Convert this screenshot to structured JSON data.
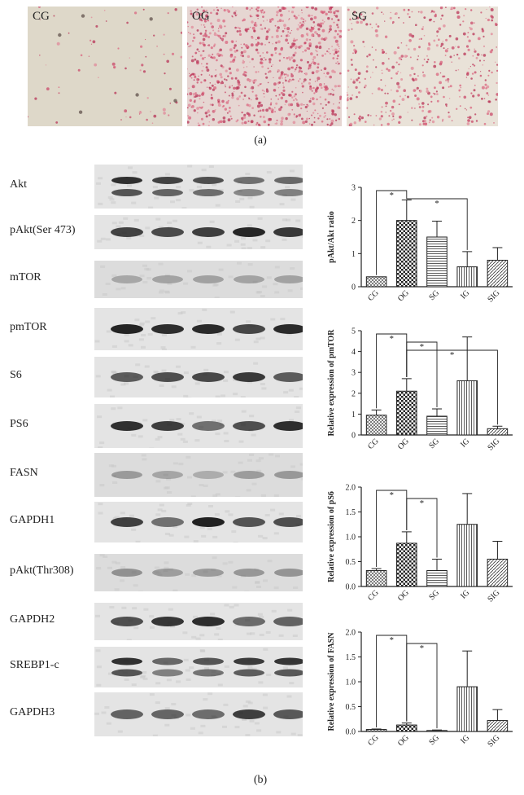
{
  "panel_a": {
    "images": [
      {
        "label": "CG",
        "stain": "sparse",
        "tint": "#ded8c9"
      },
      {
        "label": "OG",
        "stain": "dense",
        "tint": "#e6d6d2"
      },
      {
        "label": "SG",
        "stain": "moderate",
        "tint": "#e9e2d8"
      }
    ],
    "caption": "(a)"
  },
  "panel_b": {
    "caption": "(b)",
    "blots": [
      {
        "label": "Akt",
        "bands": "double"
      },
      {
        "label": "pAkt(Ser 473)",
        "bands": "single"
      },
      {
        "label": "mTOR",
        "bands": "faint"
      },
      {
        "label": "pmTOR",
        "bands": "single"
      },
      {
        "label": "S6",
        "bands": "single"
      },
      {
        "label": "PS6",
        "bands": "single"
      },
      {
        "label": "FASN",
        "bands": "faint"
      },
      {
        "label": "GAPDH1",
        "bands": "single"
      },
      {
        "label": "pAkt(Thr308)",
        "bands": "faint"
      },
      {
        "label": "GAPDH2",
        "bands": "single"
      },
      {
        "label": "SREBP1-c",
        "bands": "double"
      },
      {
        "label": "GAPDH3",
        "bands": "single"
      }
    ]
  },
  "chart_data": [
    {
      "type": "bar",
      "categories": [
        "CG",
        "OG",
        "SG",
        "IG",
        "SIG"
      ],
      "values": [
        0.3,
        2.0,
        1.5,
        0.6,
        0.8
      ],
      "errors": [
        0.0,
        0.62,
        0.48,
        0.46,
        0.38
      ],
      "ylabel": "pAkt/Akt ratio",
      "ylim": [
        0,
        3
      ],
      "yticks": [
        "0",
        "1",
        "2",
        "3"
      ],
      "significance": [
        {
          "from": "CG",
          "to": "OG",
          "label": "*"
        },
        {
          "from": "OG",
          "to": "IG",
          "label": "*"
        }
      ]
    },
    {
      "type": "bar",
      "categories": [
        "CG",
        "OG",
        "SG",
        "IG",
        "SIG"
      ],
      "values": [
        0.95,
        2.1,
        0.9,
        2.6,
        0.3
      ],
      "errors": [
        0.25,
        0.6,
        0.35,
        2.1,
        0.12
      ],
      "ylabel": "Relative expression of pmTOR",
      "ylim": [
        0,
        5
      ],
      "yticks": [
        "0",
        "1",
        "2",
        "3",
        "4",
        "5"
      ],
      "significance": [
        {
          "from": "CG",
          "to": "OG",
          "label": "*"
        },
        {
          "from": "OG",
          "to": "SG",
          "label": "*"
        },
        {
          "from": "OG",
          "to": "SIG",
          "label": "*"
        }
      ]
    },
    {
      "type": "bar",
      "categories": [
        "CG",
        "OG",
        "SG",
        "IG",
        "SIG"
      ],
      "values": [
        0.32,
        0.87,
        0.32,
        1.25,
        0.55
      ],
      "errors": [
        0.04,
        0.23,
        0.23,
        0.62,
        0.36
      ],
      "ylabel": "Relative expression of pS6",
      "ylim": [
        0,
        2.0
      ],
      "yticks": [
        "0.0",
        "0.5",
        "1.0",
        "1.5",
        "2.0"
      ],
      "significance": [
        {
          "from": "CG",
          "to": "OG",
          "label": "*"
        },
        {
          "from": "OG",
          "to": "SG",
          "label": "*"
        }
      ]
    },
    {
      "type": "bar",
      "categories": [
        "CG",
        "OG",
        "SG",
        "IG",
        "SIG"
      ],
      "values": [
        0.04,
        0.13,
        0.02,
        0.9,
        0.22
      ],
      "errors": [
        0.01,
        0.04,
        0.01,
        0.72,
        0.22
      ],
      "ylabel": "Relative expression of FASN",
      "ylim": [
        0,
        2.0
      ],
      "yticks": [
        "0.0",
        "0.5",
        "1.0",
        "1.5",
        "2.0"
      ],
      "significance": [
        {
          "from": "CG",
          "to": "OG",
          "label": "*"
        },
        {
          "from": "OG",
          "to": "SG",
          "label": "*"
        }
      ]
    }
  ]
}
